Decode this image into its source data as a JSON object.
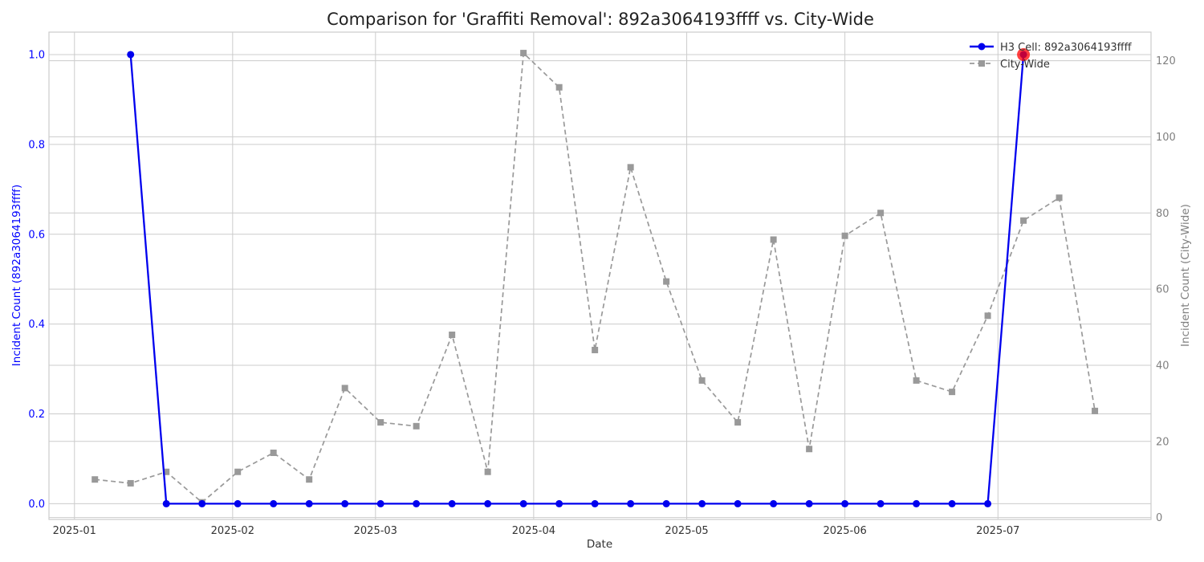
{
  "chart_data": {
    "type": "line",
    "title": "Comparison for 'Graffiti Removal': 892a3064193ffff vs. City-Wide",
    "xlabel": "Date",
    "ylabel_left": "Incident Count (892a3064193ffff)",
    "ylabel_right": "Incident Count (City-Wide)",
    "x_ticks": [
      "2025-01",
      "2025-02",
      "2025-03",
      "2025-04",
      "2025-05",
      "2025-06",
      "2025-07"
    ],
    "x_tick_dates": [
      "2025-01-01",
      "2025-02-01",
      "2025-03-01",
      "2025-04-01",
      "2025-05-01",
      "2025-06-01",
      "2025-07-01"
    ],
    "xlim": [
      "2024-12-27",
      "2025-07-31"
    ],
    "ylim_left": [
      -0.035,
      1.05
    ],
    "yticks_left": [
      "0.0",
      "0.2",
      "0.4",
      "0.6",
      "0.8",
      "1.0"
    ],
    "ylim_right": [
      -0.5,
      127.5
    ],
    "yticks_right": [
      "0",
      "20",
      "40",
      "60",
      "80",
      "100",
      "120"
    ],
    "grid": true,
    "legend_position": "top-right",
    "left_axis_color": "#0000ff",
    "right_axis_color": "#808080",
    "highlight_color": "#ff0000",
    "series": [
      {
        "name": "H3 Cell: 892a3064193ffff",
        "axis": "left",
        "color": "#0000ee",
        "marker": "circle",
        "linestyle": "solid",
        "x": [
          "2025-01-12",
          "2025-01-19",
          "2025-01-26",
          "2025-02-02",
          "2025-02-09",
          "2025-02-16",
          "2025-02-23",
          "2025-03-02",
          "2025-03-09",
          "2025-03-16",
          "2025-03-23",
          "2025-03-30",
          "2025-04-06",
          "2025-04-13",
          "2025-04-20",
          "2025-04-27",
          "2025-05-04",
          "2025-05-11",
          "2025-05-18",
          "2025-05-25",
          "2025-06-01",
          "2025-06-08",
          "2025-06-15",
          "2025-06-22",
          "2025-06-29",
          "2025-07-06"
        ],
        "values": [
          1,
          0,
          0,
          0,
          0,
          0,
          0,
          0,
          0,
          0,
          0,
          0,
          0,
          0,
          0,
          0,
          0,
          0,
          0,
          0,
          0,
          0,
          0,
          0,
          0,
          1
        ]
      },
      {
        "name": "City-Wide",
        "axis": "right",
        "color": "#999999",
        "marker": "square",
        "linestyle": "dashed",
        "x": [
          "2025-01-05",
          "2025-01-12",
          "2025-01-19",
          "2025-01-26",
          "2025-02-02",
          "2025-02-09",
          "2025-02-16",
          "2025-02-23",
          "2025-03-02",
          "2025-03-09",
          "2025-03-16",
          "2025-03-23",
          "2025-03-30",
          "2025-04-06",
          "2025-04-13",
          "2025-04-20",
          "2025-04-27",
          "2025-05-04",
          "2025-05-11",
          "2025-05-18",
          "2025-05-25",
          "2025-06-01",
          "2025-06-08",
          "2025-06-15",
          "2025-06-22",
          "2025-06-29",
          "2025-07-06",
          "2025-07-13",
          "2025-07-20"
        ],
        "values": [
          10,
          9,
          12,
          4,
          12,
          17,
          10,
          34,
          25,
          24,
          48,
          12,
          122,
          113,
          44,
          92,
          62,
          36,
          25,
          73,
          18,
          74,
          80,
          36,
          33,
          53,
          78,
          84,
          28
        ]
      }
    ],
    "highlight": {
      "x": "2025-07-06",
      "value": 1,
      "axis": "left"
    }
  }
}
